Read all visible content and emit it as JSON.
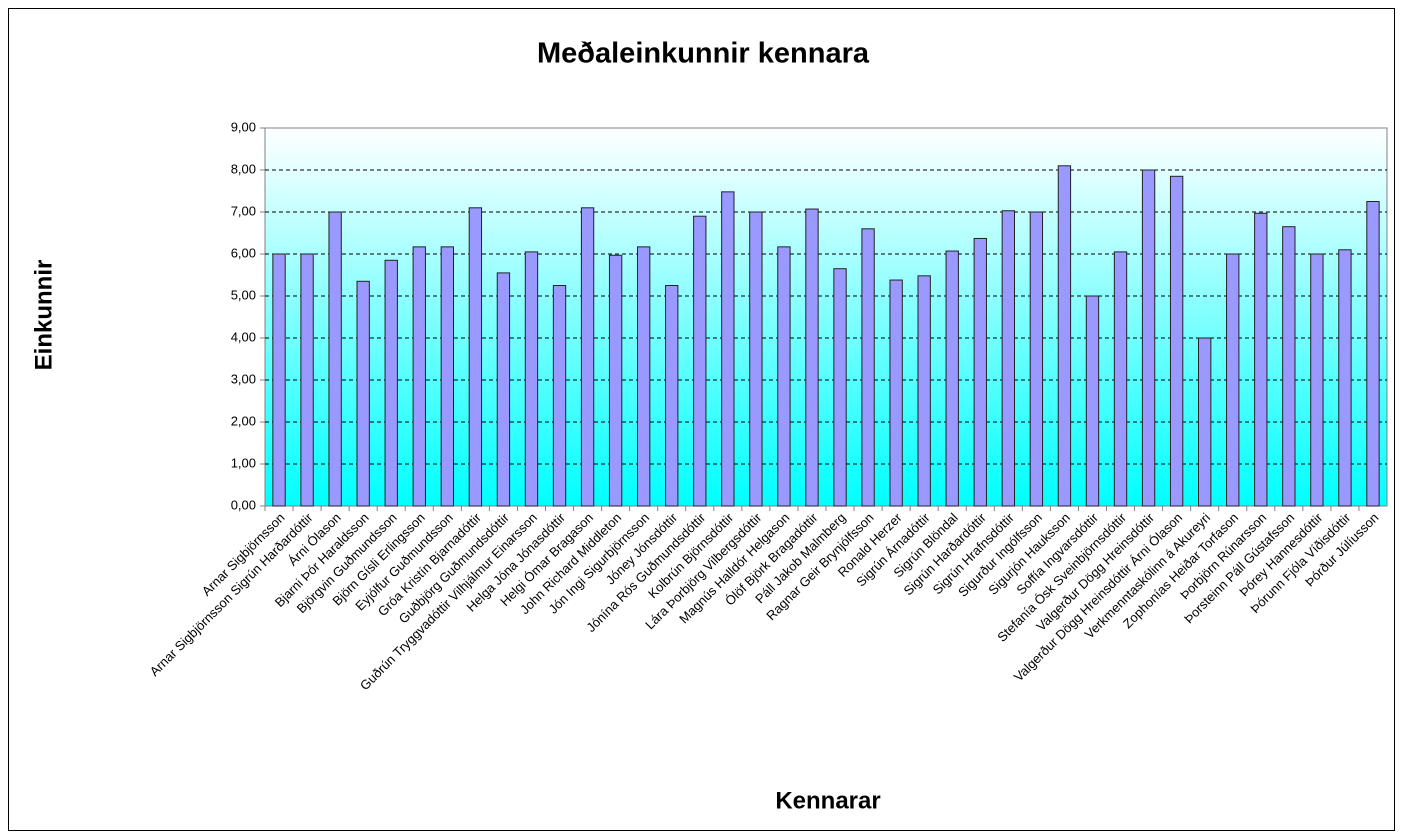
{
  "chart_data": {
    "type": "bar",
    "title": "Meðaleinkunnir kennara",
    "x_label": "Kennarar",
    "y_label": "Einkunnir",
    "categories": [
      "Arnar Sigbjörnsson",
      "Arnar Sigbjörnsson Sigrún Harðardóttir",
      "Árni Ólason",
      "Bjarni Þór Haraldsson",
      "Björgvin Guðmundsson",
      "Björn Gísli Erlingsson",
      "Eyjólfur Guðmundsson",
      "Gróa Kristín Bjarnadóttir",
      "Guðbjörg Guðmundsdóttir",
      "Guðrún Tryggvadóttir Vilhjálmur Einarsson",
      "Helga Jóna Jónasdóttir",
      "Helgi Ómar Bragason",
      "John Richard Middleton",
      "Jón Ingi Sigurbjörnsson",
      "Jóney Jónsdóttir",
      "Jónína Rós Guðmundsdóttir",
      "Kolbrún Björnsdóttir",
      "Lára Þorbjörg Vilbergsdóttir",
      "Magnús Halldór Helgason",
      "Ólöf Björk Bragadóttir",
      "Páll Jakob Malmberg",
      "Ragnar Geir Brynjólfsson",
      "Ronald Herzer",
      "Sigrún Árnadóttir",
      "Sigrún Blöndal",
      "Sigrún Harðardóttir",
      "Sigrún Hrafnsdóttir",
      "Sigurður Ingólfsson",
      "Sigurjón Hauksson",
      "Soffía Ingvarsdóttir",
      "Stefanía Ósk Sveinbjörnsdóttir",
      "Valgerður Dögg Hreinsdóttir",
      "Valgerður Dögg Hreinsdóttir Árni Ólason",
      "Verkmenntaskólinn á Akureyri",
      "Zophonías Heiðar Torfason",
      "Þorbjörn Rúnarsson",
      "Þorsteinn Páll Gústafsson",
      "Þórey Hannesdóttir",
      "Þórunn Fjóla Víðisdóttir",
      "Þórður Júlíusson"
    ],
    "values": [
      6.0,
      6.0,
      7.0,
      5.35,
      5.85,
      6.17,
      6.17,
      7.1,
      5.55,
      6.05,
      5.25,
      7.1,
      5.97,
      6.17,
      5.25,
      6.9,
      7.48,
      7.0,
      6.17,
      7.07,
      5.65,
      6.6,
      5.38,
      5.48,
      6.07,
      6.37,
      7.03,
      7.0,
      8.1,
      5.0,
      6.05,
      8.0,
      7.85,
      4.0,
      6.0,
      6.97,
      6.65,
      6.0,
      6.1,
      7.25
    ],
    "color": "#9999ff",
    "ylim": [
      0,
      9
    ],
    "yticks": [
      {
        "value": 0,
        "label": "0,00"
      },
      {
        "value": 1,
        "label": "1,00"
      },
      {
        "value": 2,
        "label": "2,00"
      },
      {
        "value": 3,
        "label": "3,00"
      },
      {
        "value": 4,
        "label": "4,00"
      },
      {
        "value": 5,
        "label": "5,00"
      },
      {
        "value": 6,
        "label": "6,00"
      },
      {
        "value": 7,
        "label": "7,00"
      },
      {
        "value": 8,
        "label": "8,00"
      },
      {
        "value": 9,
        "label": "9,00"
      }
    ],
    "grid": true
  }
}
